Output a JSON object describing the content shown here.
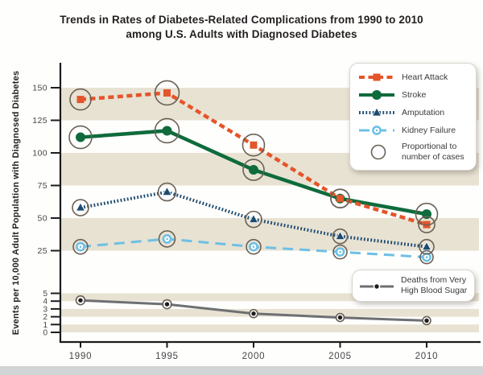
{
  "title": {
    "line1": "Trends in Rates of Diabetes-Related Complications from 1990 to 2010",
    "line2": "among U.S. Adults with Diagnosed Diabetes"
  },
  "chart_data": {
    "type": "line",
    "x_categories": [
      "1990",
      "1995",
      "2000",
      "2005",
      "2010"
    ],
    "ylabel": "Events per 10,000 Adult Population with Diagnosed Diabetes",
    "y_axis": {
      "upper_ticks": [
        150,
        125,
        100,
        75,
        50,
        25
      ],
      "lower_ticks": [
        5,
        4,
        3,
        2,
        1,
        0
      ],
      "broken_axis": true,
      "upper_range": [
        25,
        150
      ],
      "lower_range": [
        0,
        5
      ]
    },
    "grid": {
      "stripe_bands_upper": [
        [
          125,
          150
        ],
        [
          75,
          100
        ],
        [
          25,
          50
        ]
      ],
      "stripe_bands_lower": [
        [
          4,
          5
        ],
        [
          2,
          3
        ],
        [
          0,
          1
        ]
      ],
      "stripe_color": "#e8e2d3"
    },
    "series": [
      {
        "name": "Heart Attack",
        "axis": "upper",
        "values": [
          141,
          146,
          106,
          65,
          45
        ],
        "color": "#e4552a",
        "line_style": "dashed",
        "marker": "square",
        "case_circle_r": [
          13,
          15,
          13.5,
          11.5,
          10
        ]
      },
      {
        "name": "Stroke",
        "axis": "upper",
        "values": [
          112,
          117,
          87,
          65,
          53
        ],
        "color": "#0f6b3c",
        "line_style": "solid",
        "marker": "circle",
        "case_circle_r": [
          14,
          15,
          13,
          11.5,
          13.5
        ]
      },
      {
        "name": "Amputation",
        "axis": "upper",
        "values": [
          58,
          70,
          49,
          36,
          28
        ],
        "color": "#1d4b70",
        "line_style": "dotted",
        "marker": "triangle",
        "case_circle_r": [
          10,
          11,
          10,
          9,
          9
        ]
      },
      {
        "name": "Kidney Failure",
        "axis": "upper",
        "values": [
          28,
          34,
          28,
          24,
          20
        ],
        "color": "#6ec0e4",
        "line_style": "long-dash",
        "marker": "ring",
        "case_circle_r": [
          9,
          10,
          9,
          8.5,
          8
        ]
      },
      {
        "name": "Deaths from Very High Blood Sugar",
        "axis": "lower",
        "values": [
          4.1,
          3.6,
          2.4,
          1.9,
          1.5
        ],
        "color": "#6e6f72",
        "line_style": "solid",
        "marker": "dot",
        "case_circle_r": [
          5.5,
          5.5,
          5,
          5,
          5
        ]
      }
    ],
    "case_circle_color": "#6b6157",
    "legend_note": "Proportional to number of cases"
  },
  "legend": {
    "proportional_line1": "Proportional to",
    "proportional_line2": "number of cases",
    "deaths_line1": "Deaths from Very",
    "deaths_line2": "High Blood Sugar"
  },
  "colors": {
    "title_text": "#231f20",
    "axis": "#1c1c1e",
    "tick_text": "#454547",
    "bottom_strip": "#d2d5d5",
    "page_background": "#fefefc"
  }
}
